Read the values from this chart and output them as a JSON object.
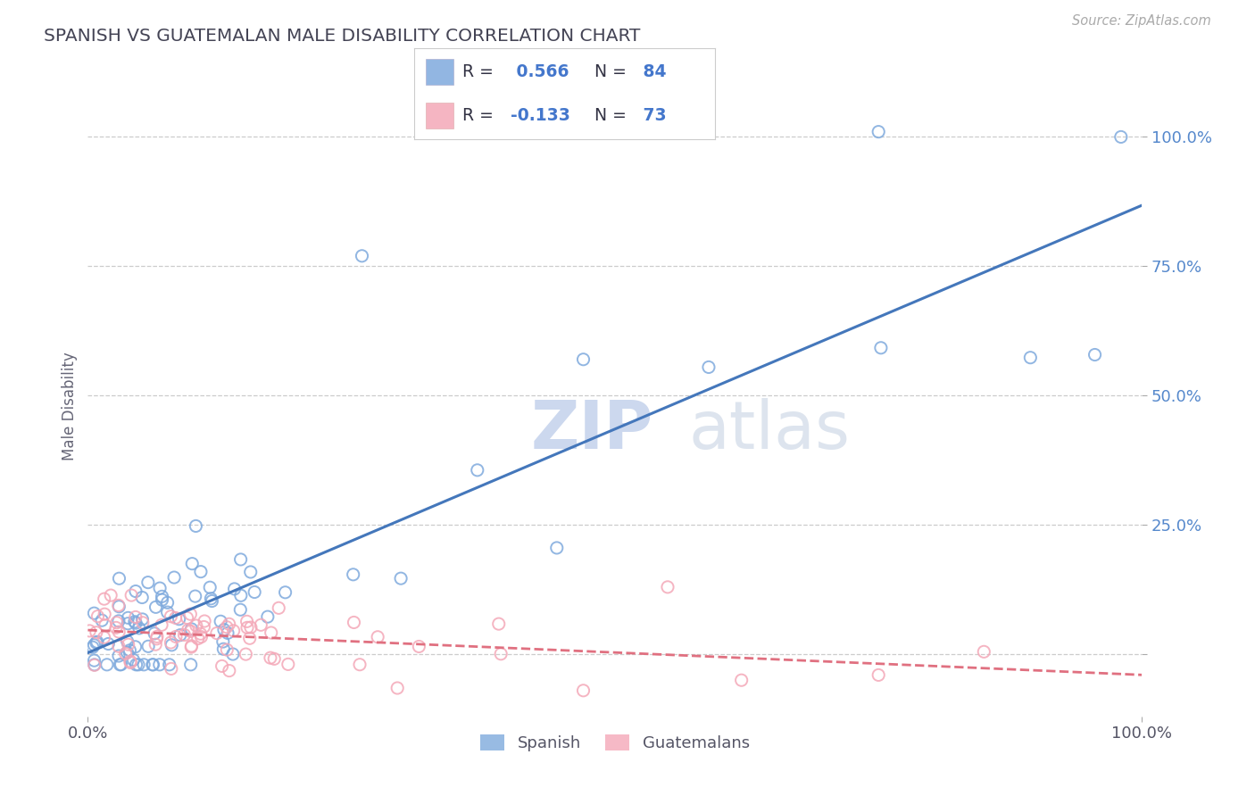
{
  "title": "SPANISH VS GUATEMALAN MALE DISABILITY CORRELATION CHART",
  "source": "Source: ZipAtlas.com",
  "ylabel": "Male Disability",
  "xlim": [
    0.0,
    1.0
  ],
  "ylim": [
    -0.12,
    1.08
  ],
  "yticks": [
    0.0,
    0.25,
    0.5,
    0.75,
    1.0
  ],
  "ytick_labels": [
    "",
    "25.0%",
    "50.0%",
    "75.0%",
    "100.0%"
  ],
  "xtick_labels": [
    "0.0%",
    "100.0%"
  ],
  "spanish_color": "#7faadd",
  "guatemalan_color": "#f4a8b8",
  "spanish_line_color": "#4477bb",
  "guatemalan_line_color": "#e07080",
  "spanish_R": 0.566,
  "spanish_N": 84,
  "guatemalan_R": -0.133,
  "guatemalan_N": 73,
  "legend_label_spanish": "Spanish",
  "legend_label_guatemalan": "Guatemalans",
  "watermark_zip": "ZIP",
  "watermark_atlas": "atlas",
  "background_color": "#ffffff",
  "grid_color": "#cccccc",
  "title_color": "#444455",
  "axis_label_color": "#666677",
  "legend_R_color": "#4477cc",
  "legend_N_color": "#4477cc"
}
